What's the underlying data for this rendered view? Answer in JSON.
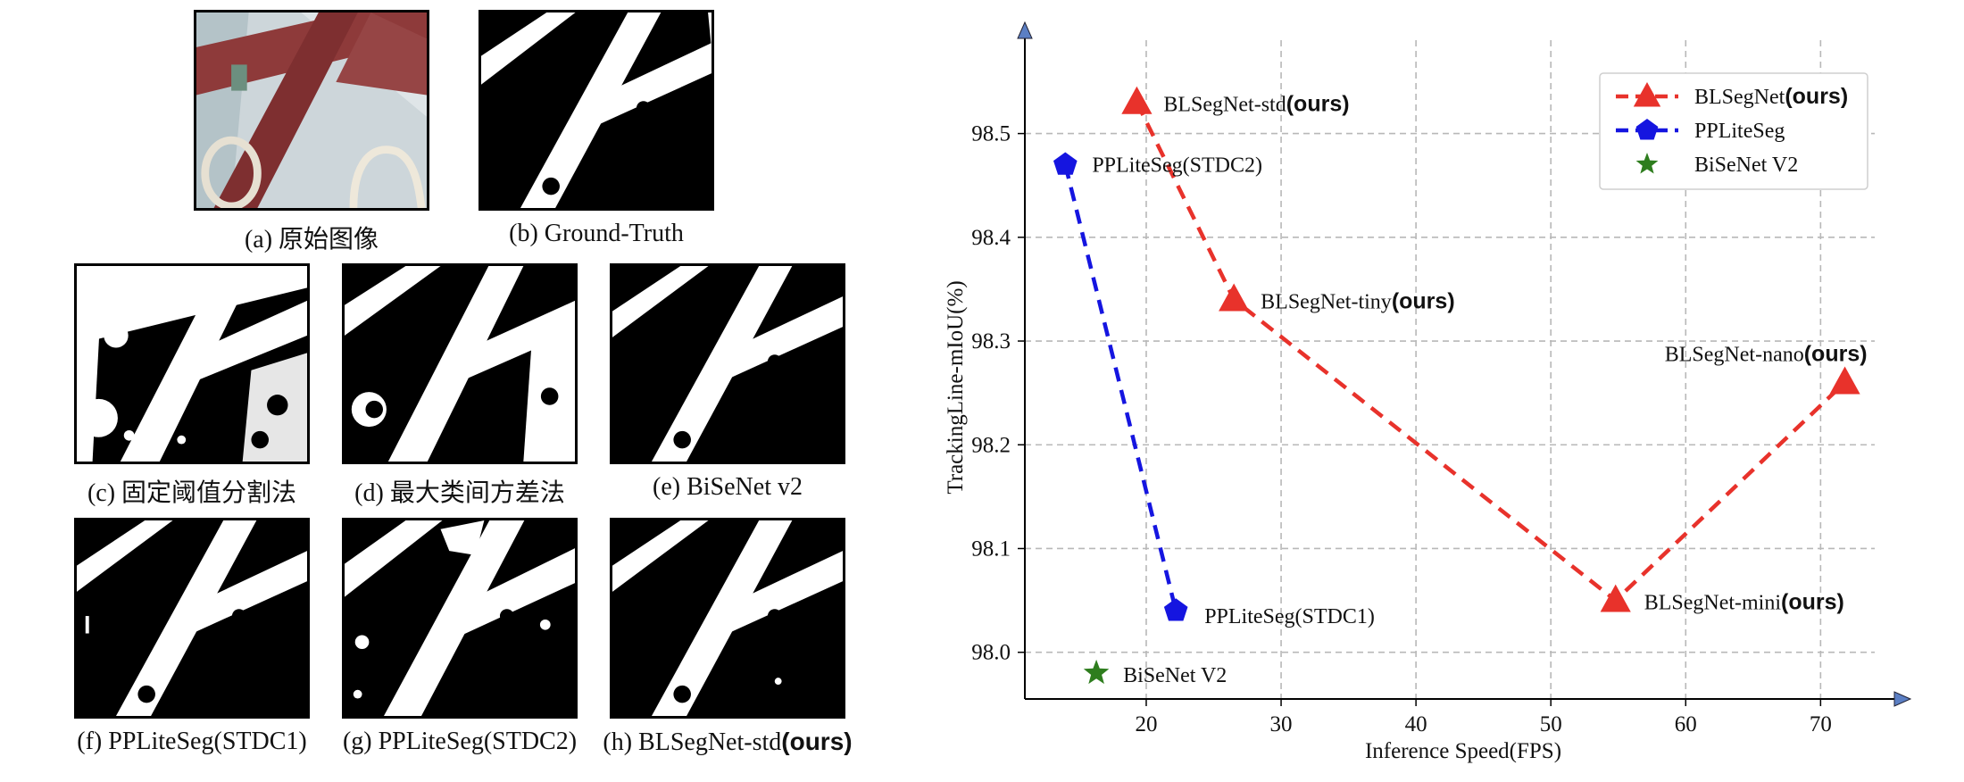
{
  "panels": [
    {
      "caption": "(a) 原始图像"
    },
    {
      "caption": "(b) Ground-Truth"
    },
    {
      "caption": "(c) 固定阈值分割法"
    },
    {
      "caption": "(d) 最大类间方差法"
    },
    {
      "caption": "(e) BiSeNet v2"
    },
    {
      "caption": "(f) PPLiteSeg(STDC1)"
    },
    {
      "caption": "(g) PPLiteSeg(STDC2)"
    },
    {
      "caption_prefix": "(h) BLSegNet-std",
      "caption_bold": "(ours)"
    }
  ],
  "chart_data": {
    "type": "scatter",
    "xlabel": "Inference Speed(FPS)",
    "ylabel": "TrackingLine-mIoU(%)",
    "xlim": [
      11,
      76
    ],
    "ylim": [
      97.955,
      98.59
    ],
    "xticks": [
      20,
      30,
      40,
      50,
      60,
      70
    ],
    "yticks": [
      98.0,
      98.1,
      98.2,
      98.3,
      98.4,
      98.5
    ],
    "grid": true,
    "legend_position": "top-right",
    "series": [
      {
        "name": "BLSegNet",
        "name_bold": "(ours)",
        "color": "#e8322b",
        "marker": "triangle",
        "line": "dashed",
        "points": [
          {
            "x": 19.3,
            "y": 98.53,
            "label": "BLSegNet-std",
            "label_bold": "(ours)"
          },
          {
            "x": 26.5,
            "y": 98.34,
            "label": "BLSegNet-tiny",
            "label_bold": "(ours)"
          },
          {
            "x": 54.8,
            "y": 98.05,
            "label": "BLSegNet-mini",
            "label_bold": "(ours)"
          },
          {
            "x": 71.8,
            "y": 98.26,
            "label": "BLSegNet-nano",
            "label_bold": "(ours)"
          }
        ]
      },
      {
        "name": "PPLiteSeg",
        "color": "#1515e0",
        "marker": "pentagon",
        "line": "dashed",
        "points": [
          {
            "x": 14.0,
            "y": 98.47,
            "label": "PPLiteSeg(STDC2)"
          },
          {
            "x": 22.2,
            "y": 98.04,
            "label": "PPLiteSeg(STDC1)"
          }
        ]
      },
      {
        "name": "BiSeNet V2",
        "color": "#2e7d1e",
        "marker": "star",
        "line": "none",
        "points": [
          {
            "x": 16.3,
            "y": 97.98,
            "label": "BiSeNet V2"
          }
        ]
      }
    ]
  },
  "colors": {
    "axis_arrow": "#5b7fc4",
    "grid": "#b8b8b8"
  }
}
